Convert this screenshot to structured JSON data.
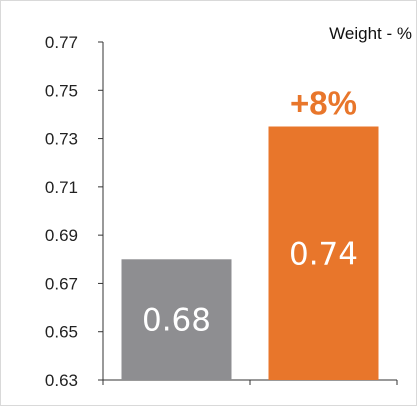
{
  "chart_data": {
    "type": "bar",
    "categories": [
      "",
      ""
    ],
    "values": [
      0.68,
      0.735
    ],
    "data_labels": [
      "0.68",
      "0.74"
    ],
    "bar_colors": [
      "#8e8e91",
      "#e8762b"
    ],
    "change_annotation": "+8%",
    "change_color": "#e8762b",
    "legend_text": "Weight - %",
    "legend_placement": "top-right",
    "ylim": [
      0.63,
      0.77
    ],
    "y_ticks": [
      0.63,
      0.65,
      0.67,
      0.69,
      0.71,
      0.73,
      0.75,
      0.77
    ],
    "y_tick_labels": [
      "0.63",
      "0.65",
      "0.67",
      "0.69",
      "0.71",
      "0.73",
      "0.75",
      "0.77"
    ],
    "grid": false,
    "axis_color": "#333333"
  }
}
